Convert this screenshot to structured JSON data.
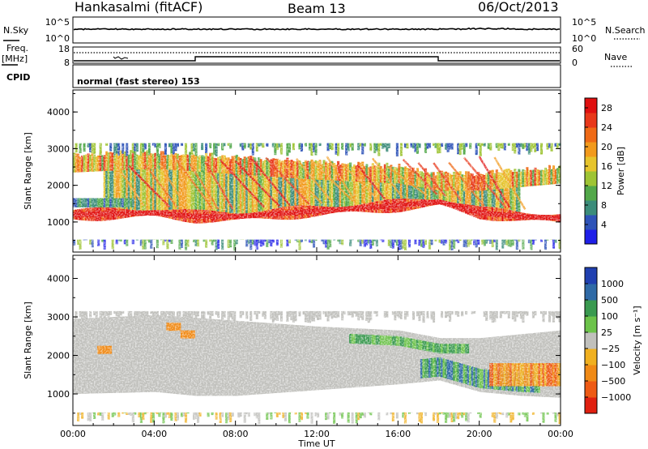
{
  "header": {
    "station": "Hankasalmi (fitACF)",
    "beam": "Beam 13",
    "date": "06/Oct/2013"
  },
  "top_panels": {
    "nsky_label": "N.Sky",
    "nsearch_label": "N.Search",
    "nsky_ticks": [
      "10^5",
      "10^0"
    ],
    "nsearch_ticks": [
      "10^5",
      "10^0"
    ],
    "freq_label_1": "Freq.",
    "freq_label_2": "[MHz]",
    "freq_ticks": [
      "18",
      "8"
    ],
    "nave_label": "Nave",
    "nave_ticks": [
      "60",
      "0"
    ],
    "cpid_label": "CPID",
    "cpid_text": "normal (fast stereo) 153"
  },
  "chart_data": [
    {
      "type": "heatmap",
      "name": "power",
      "ylabel": "Slant Range [km]",
      "y_ticks": [
        "1000",
        "2000",
        "3000",
        "4000"
      ],
      "x_ticks": [
        "00:00",
        "04:00",
        "08:00",
        "12:00",
        "16:00",
        "20:00",
        "00:00"
      ],
      "xlim": [
        0,
        24
      ],
      "ylim": [
        180,
        4600
      ],
      "colorbar": {
        "label": "Power [dB]",
        "ticks": [
          "4",
          "8",
          "12",
          "16",
          "20",
          "24",
          "28"
        ],
        "range": [
          0,
          30
        ],
        "colors": [
          "#1f1fe8",
          "#2e53b8",
          "#3b8c7a",
          "#52a84a",
          "#9ec434",
          "#e6c42c",
          "#f29a1c",
          "#ef6a16",
          "#e8381a",
          "#e01010"
        ]
      },
      "features": [
        {
          "desc": "main band",
          "t": [
            0,
            4,
            6,
            8,
            12,
            16,
            18,
            20,
            22,
            24
          ],
          "range_km": [
            1200,
            1250,
            1150,
            1150,
            1300,
            1450,
            1550,
            1250,
            1150,
            1100
          ]
        },
        {
          "desc": "upper band",
          "t": [
            0,
            4,
            8,
            12,
            16,
            18,
            20,
            24
          ],
          "range_km": [
            2500,
            2600,
            2450,
            2300,
            2200,
            2000,
            2000,
            2200
          ]
        }
      ]
    },
    {
      "type": "heatmap",
      "name": "velocity",
      "ylabel": "Slant Range [km]",
      "xlabel": "Time UT",
      "y_ticks": [
        "1000",
        "2000",
        "3000",
        "4000"
      ],
      "x_ticks": [
        "00:00",
        "04:00",
        "08:00",
        "12:00",
        "16:00",
        "20:00",
        "00:00"
      ],
      "xlim": [
        0,
        24
      ],
      "ylim": [
        180,
        4600
      ],
      "colorbar": {
        "label": "Velocity [m s⁻¹]",
        "ticks": [
          "1000",
          "500",
          "100",
          "25",
          "−25",
          "−100",
          "−500",
          "−1000"
        ],
        "colors": [
          "#2040b0",
          "#2f6aa6",
          "#3a9a50",
          "#6cc34a",
          "#c0c0bc",
          "#f0b020",
          "#f08a16",
          "#ee5a14",
          "#e02010"
        ]
      }
    }
  ]
}
